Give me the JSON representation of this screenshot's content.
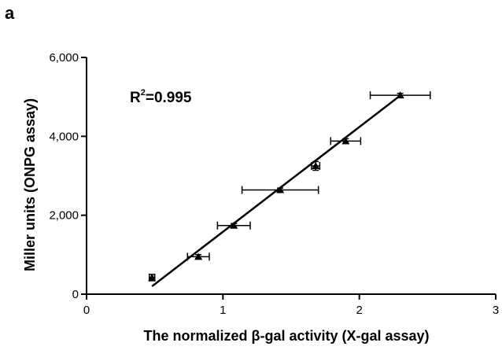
{
  "panel_label": "a",
  "annotation": {
    "prefix": "R",
    "sup": "2",
    "suffix": "=0.995"
  },
  "chart_data": {
    "type": "scatter",
    "title": "",
    "xlabel": "The normalized β-gal activity (X-gal assay)",
    "ylabel": "Miller units (ONPG assay)",
    "xlim": [
      0,
      3
    ],
    "ylim": [
      0,
      6000
    ],
    "xticks": [
      0,
      1,
      2,
      3
    ],
    "xtick_labels": [
      "0",
      "1",
      "2",
      "3"
    ],
    "yticks": [
      0,
      2000,
      4000,
      6000
    ],
    "ytick_labels": [
      "0",
      "2,000",
      "4,000",
      "6,000"
    ],
    "grid": false,
    "points": [
      {
        "x": 0.48,
        "y": 420,
        "xerr": 0.02,
        "yerr": 80
      },
      {
        "x": 0.82,
        "y": 950,
        "xerr": 0.08,
        "yerr": 50
      },
      {
        "x": 1.08,
        "y": 1740,
        "xerr": 0.12,
        "yerr": 50
      },
      {
        "x": 1.42,
        "y": 2640,
        "xerr": 0.28,
        "yerr": 50
      },
      {
        "x": 1.68,
        "y": 3250,
        "xerr": 0.03,
        "yerr": 110
      },
      {
        "x": 1.9,
        "y": 3880,
        "xerr": 0.11,
        "yerr": 60
      },
      {
        "x": 2.3,
        "y": 5040,
        "xerr": 0.22,
        "yerr": 50
      }
    ],
    "fit_line": {
      "x": [
        0.48,
        2.28
      ],
      "y": [
        200,
        4980
      ]
    }
  }
}
